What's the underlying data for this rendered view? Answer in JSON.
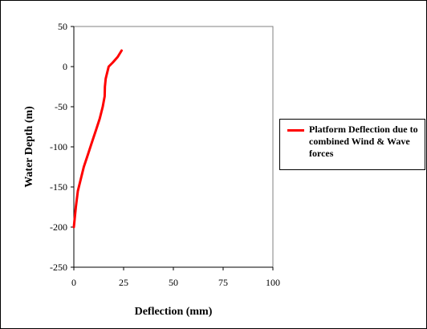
{
  "chart_data": {
    "type": "line",
    "title": "",
    "xlabel": "Deflection (mm)",
    "ylabel": "Water Depth (m)",
    "xlim": [
      0,
      100
    ],
    "ylim": [
      -250,
      50
    ],
    "xticks": [
      0,
      25,
      50,
      75,
      100
    ],
    "yticks": [
      50,
      0,
      -50,
      -100,
      -150,
      -200,
      -250
    ],
    "grid": false,
    "legend_position": "right",
    "series": [
      {
        "name": "Platform Deflection due to combined Wind & Wave forces",
        "color": "#ff0000",
        "x": [
          0,
          1,
          2,
          3.5,
          5,
          7,
          9,
          11,
          13,
          14.5,
          15.5,
          15.6,
          16,
          17.5,
          19.5,
          22,
          24
        ],
        "y": [
          -200,
          -175,
          -155,
          -140,
          -125,
          -110,
          -95,
          -80,
          -65,
          -50,
          -37,
          -25,
          -15,
          0,
          5,
          12,
          20
        ]
      }
    ]
  }
}
